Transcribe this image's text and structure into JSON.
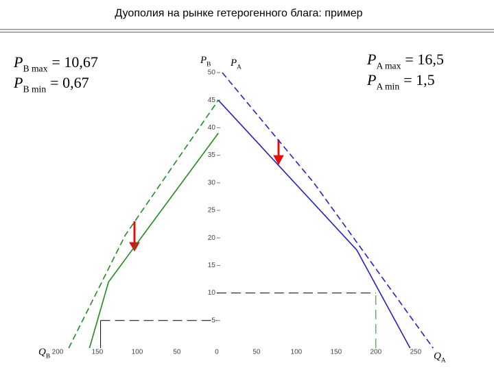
{
  "chart_data": {
    "type": "line",
    "title": "Дуополия на рынке гетерогенного блага: пример",
    "xlim": [
      -200,
      270
    ],
    "ylim": [
      0,
      50
    ],
    "xticks": [
      {
        "value": -200,
        "label": "200"
      },
      {
        "value": -150,
        "label": "150"
      },
      {
        "value": -100,
        "label": "100"
      },
      {
        "value": -50,
        "label": "50"
      },
      0,
      50,
      100,
      150,
      200,
      250
    ],
    "yticks": [
      5,
      10,
      15,
      20,
      25,
      30,
      35,
      40,
      45,
      50
    ],
    "axis_labels": {
      "pb": {
        "symbol": "P",
        "sub": "B"
      },
      "pa": {
        "symbol": "P",
        "sub": "A"
      },
      "qb": {
        "symbol": "Q",
        "sub": "B"
      },
      "qa": {
        "symbol": "Q",
        "sub": "A"
      }
    },
    "annotations": [
      {
        "symbol": "P",
        "sub": "B max",
        "rest": "= 10,67"
      },
      {
        "symbol": "P",
        "sub": "B min",
        "rest": "= 0,67"
      },
      {
        "symbol": "P",
        "sub": "A max",
        "rest": "= 16,5"
      },
      {
        "symbol": "P",
        "sub": "A min",
        "rest": "= 1,5"
      }
    ],
    "series": [
      {
        "color": "#2020c8",
        "dash": false,
        "x": [
          2,
          176,
          243
        ],
        "values": [
          45,
          17.8,
          0
        ]
      },
      {
        "color": "#2020c8",
        "dash": true,
        "x": [
          7,
          122,
          272
        ],
        "values": [
          50,
          30,
          0
        ]
      },
      {
        "color": "#1f8a1f",
        "dash": false,
        "x": [
          -160,
          -136,
          2
        ],
        "values": [
          0,
          12,
          39
        ]
      },
      {
        "color": "#1f8a1f",
        "dash": true,
        "x": [
          -186,
          -115,
          2
        ],
        "values": [
          0,
          20.5,
          45
        ]
      }
    ],
    "guides": [
      {
        "color": "#000000",
        "dash": true,
        "x": [
          -146,
          0
        ],
        "values": [
          5,
          5
        ]
      },
      {
        "color": "#000000",
        "dash": false,
        "x": [
          -146,
          -146
        ],
        "values": [
          0,
          5
        ]
      },
      {
        "color": "#000000",
        "dash": true,
        "x": [
          0,
          200
        ],
        "values": [
          10,
          10
        ]
      },
      {
        "color": "#1f8a1f",
        "dash": true,
        "x": [
          200,
          200
        ],
        "values": [
          0,
          10
        ]
      }
    ]
  }
}
